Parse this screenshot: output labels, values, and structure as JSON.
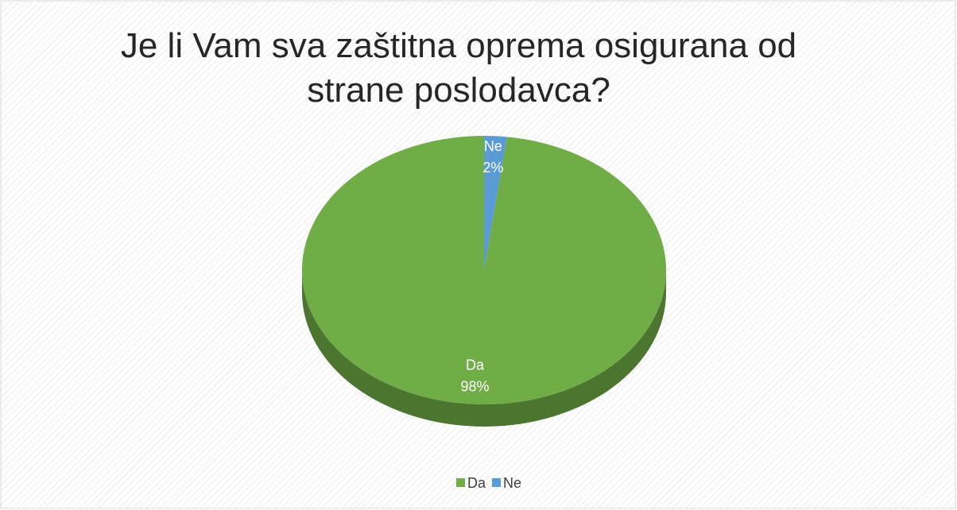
{
  "chart_data": {
    "type": "pie",
    "title": "Je li Vam sva zaštitna oprema osigurana od strane poslodavca?",
    "categories": [
      "Da",
      "Ne"
    ],
    "values": [
      98,
      2
    ],
    "value_labels": [
      "98%",
      "2%"
    ],
    "colors": [
      "#70ad47",
      "#5b9bd5"
    ],
    "legend": "bottom"
  }
}
